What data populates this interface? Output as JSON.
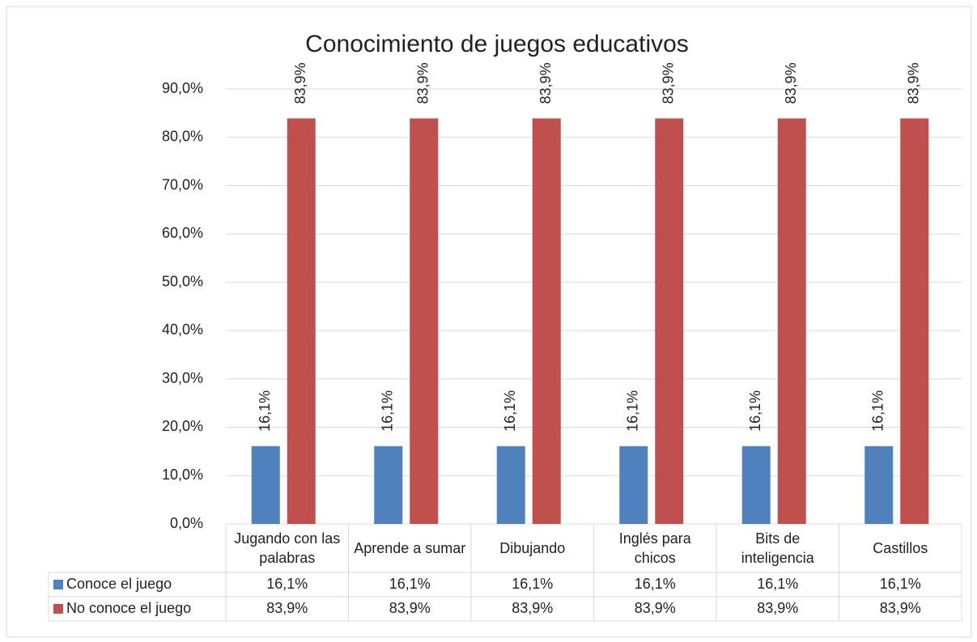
{
  "chart_data": {
    "type": "bar",
    "title": "Conocimiento de juegos educativos",
    "categories": [
      "Jugando con las palabras",
      "Aprende a sumar",
      "Dibujando",
      "Inglés para chicos",
      "Bits de inteligencia",
      "Castillos"
    ],
    "series": [
      {
        "name": "Conoce el juego",
        "color": "#4f81bd",
        "values": [
          16.1,
          16.1,
          16.1,
          16.1,
          16.1,
          16.1
        ],
        "value_labels": [
          "16,1%",
          "16,1%",
          "16,1%",
          "16,1%",
          "16,1%",
          "16,1%"
        ]
      },
      {
        "name": "No conoce el juego",
        "color": "#c0504d",
        "values": [
          83.9,
          83.9,
          83.9,
          83.9,
          83.9,
          83.9
        ],
        "value_labels": [
          "83,9%",
          "83,9%",
          "83,9%",
          "83,9%",
          "83,9%",
          "83,9%"
        ]
      }
    ],
    "ylim": [
      0,
      90
    ],
    "yticks": [
      {
        "value": 0,
        "label": "0,0%"
      },
      {
        "value": 10,
        "label": "10,0%"
      },
      {
        "value": 20,
        "label": "20,0%"
      },
      {
        "value": 30,
        "label": "30,0%"
      },
      {
        "value": 40,
        "label": "40,0%"
      },
      {
        "value": 50,
        "label": "50,0%"
      },
      {
        "value": 60,
        "label": "60,0%"
      },
      {
        "value": 70,
        "label": "70,0%"
      },
      {
        "value": 80,
        "label": "80,0%"
      },
      {
        "value": 90,
        "label": "90,0%"
      }
    ],
    "grid": true,
    "data_table": true
  }
}
